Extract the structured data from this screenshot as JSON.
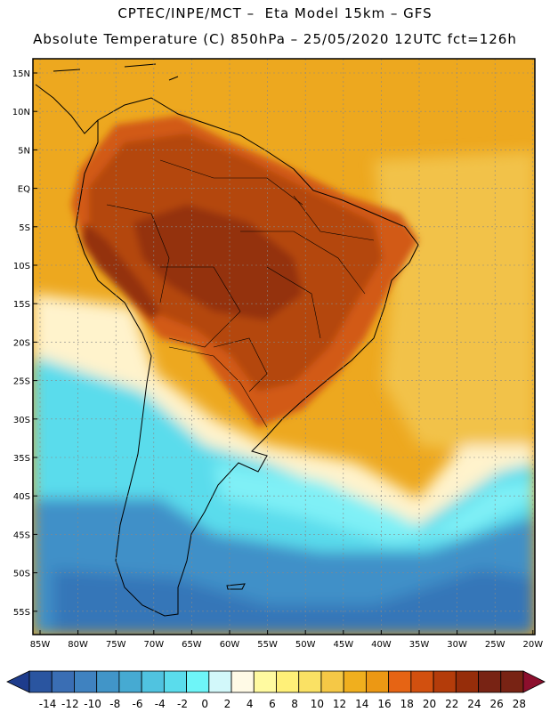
{
  "header": {
    "line1": "CPTEC/INPE/MCT –  Eta Model 15km – GFS",
    "line2": "Absolute Temperature (C) 850hPa – 25/05/2020 12UTC fct=126h"
  },
  "axes": {
    "lat_labels": [
      "15N",
      "10N",
      "5N",
      "EQ",
      "5S",
      "10S",
      "15S",
      "20S",
      "25S",
      "30S",
      "35S",
      "40S",
      "45S",
      "50S",
      "55S"
    ],
    "lon_labels": [
      "85W",
      "80W",
      "75W",
      "70W",
      "65W",
      "60W",
      "55W",
      "50W",
      "45W",
      "40W",
      "35W",
      "30W",
      "25W",
      "20W"
    ]
  },
  "colorbar": {
    "labels": [
      "-14",
      "-12",
      "-10",
      "-8",
      "-6",
      "-4",
      "-2",
      "0",
      "2",
      "4",
      "6",
      "8",
      "10",
      "12",
      "14",
      "16",
      "18",
      "20",
      "22",
      "24",
      "26",
      "28"
    ],
    "colors": [
      "#1e3c8c",
      "#2a55a0",
      "#3a6eb4",
      "#3f82c0",
      "#4195c8",
      "#46aad2",
      "#50c3e0",
      "#5adcec",
      "#6ef5f8",
      "#d2f8fa",
      "#fffae6",
      "#fffaa0",
      "#fff078",
      "#fae164",
      "#f5c846",
      "#f0af1e",
      "#ec9814",
      "#e66414",
      "#d2500f",
      "#b43c0a",
      "#962d0a",
      "#782314",
      "#8c0f2d"
    ]
  },
  "colors": {
    "ocean_north": "#eda81f",
    "ocean_mid": "#f2c24a",
    "ocean_cream": "#fff3cc",
    "ocean_cyan": "#5adcec",
    "ocean_light_cyan": "#7ff0f6",
    "ocean_blue": "#3f90c8",
    "ocean_deep": "#3576b8",
    "land_hot": "#b4470f",
    "land_core": "#943010",
    "land_warm": "#d25a12",
    "grid": "#888888"
  }
}
